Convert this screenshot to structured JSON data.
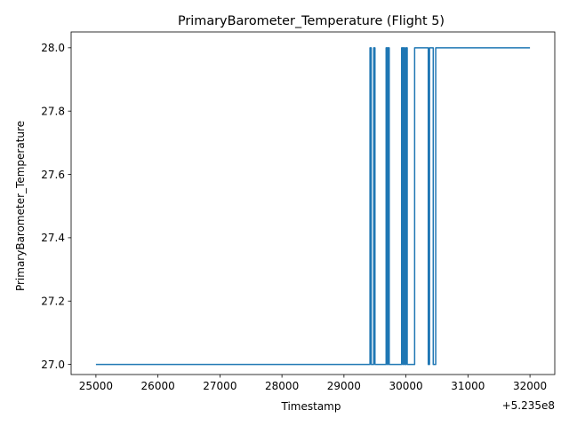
{
  "chart_data": {
    "type": "line",
    "title": "PrimaryBarometer_Temperature (Flight 5)",
    "xlabel": "Timestamp",
    "ylabel": "PrimaryBarometer_Temperature",
    "x_offset_label": "+5.235e8",
    "xlim": [
      24600,
      32400
    ],
    "ylim": [
      26.968,
      28.05
    ],
    "grid": false,
    "x_ticks": [
      25000,
      26000,
      27000,
      28000,
      29000,
      30000,
      31000,
      32000
    ],
    "y_ticks": [
      27.0,
      27.2,
      27.4,
      27.6,
      27.8,
      28.0
    ],
    "x_tick_labels": [
      "25000",
      "26000",
      "27000",
      "28000",
      "29000",
      "30000",
      "31000",
      "32000"
    ],
    "y_tick_labels": [
      "27.0",
      "27.2",
      "27.4",
      "27.6",
      "27.8",
      "28.0"
    ],
    "series": [
      {
        "color": "#1f77b4",
        "x": [
          25000,
          29420,
          29420,
          29440,
          29440,
          29460,
          29460,
          29480,
          29480,
          29500,
          29500,
          29520,
          29520,
          29680,
          29680,
          29700,
          29700,
          29710,
          29710,
          29730,
          29730,
          29740,
          29740,
          29930,
          29930,
          29950,
          29950,
          29960,
          29960,
          29980,
          29980,
          30000,
          30000,
          30020,
          30020,
          30040,
          30040,
          30060,
          30060,
          30140,
          30140,
          30360,
          30360,
          30380,
          30380,
          30400,
          30400,
          30440,
          30440,
          30460,
          30460,
          30480,
          30480,
          30500,
          30500,
          32000
        ],
        "y": [
          27.0,
          27.0,
          28.0,
          28.0,
          27.0,
          27.0,
          27.0,
          27.0,
          28.0,
          28.0,
          27.0,
          27.0,
          27.0,
          27.0,
          28.0,
          28.0,
          27.0,
          27.0,
          28.0,
          28.0,
          27.0,
          27.0,
          27.0,
          27.0,
          28.0,
          28.0,
          27.0,
          27.0,
          28.0,
          28.0,
          27.0,
          27.0,
          28.0,
          28.0,
          27.0,
          27.0,
          27.0,
          27.0,
          27.0,
          27.0,
          28.0,
          28.0,
          27.0,
          27.0,
          28.0,
          28.0,
          28.0,
          28.0,
          27.0,
          27.0,
          27.0,
          27.0,
          28.0,
          28.0,
          28.0,
          28.0
        ]
      }
    ]
  }
}
